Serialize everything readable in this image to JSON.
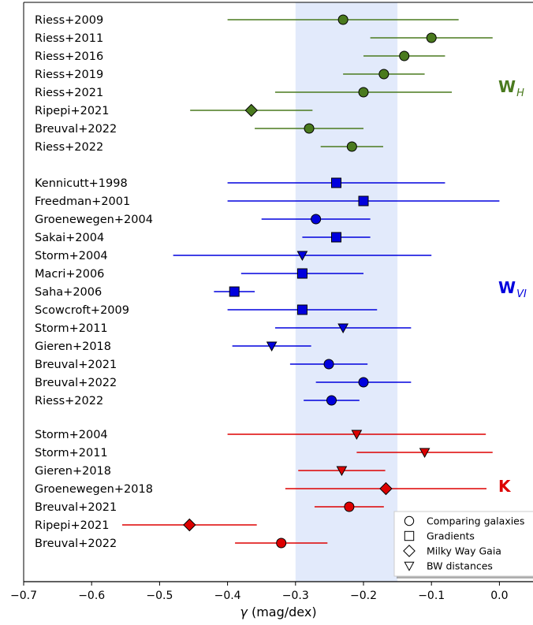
{
  "chart_data": {
    "type": "scatter",
    "xlabel_symbol": "γ",
    "xlabel_unit": "(mag/dex)",
    "xlim": [
      -0.7,
      0.05
    ],
    "xticks": [
      "−0.7",
      "−0.6",
      "−0.5",
      "−0.4",
      "−0.3",
      "−0.2",
      "−0.1",
      "0.0"
    ],
    "shaded_band": [
      -0.3,
      -0.15
    ],
    "groups": [
      {
        "label_main": "W",
        "label_sub": "H",
        "color": "#4a7a1e",
        "rows": [
          {
            "name": "Riess+2009",
            "gamma": -0.23,
            "lo": -0.4,
            "hi": -0.06,
            "marker": "circle"
          },
          {
            "name": "Riess+2011",
            "gamma": -0.1,
            "lo": -0.19,
            "hi": -0.01,
            "marker": "circle"
          },
          {
            "name": "Riess+2016",
            "gamma": -0.14,
            "lo": -0.2,
            "hi": -0.08,
            "marker": "circle"
          },
          {
            "name": "Riess+2019",
            "gamma": -0.17,
            "lo": -0.23,
            "hi": -0.11,
            "marker": "circle"
          },
          {
            "name": "Riess+2021",
            "gamma": -0.2,
            "lo": -0.33,
            "hi": -0.07,
            "marker": "circle"
          },
          {
            "name": "Ripepi+2021",
            "gamma": -0.365,
            "lo": -0.455,
            "hi": -0.275,
            "marker": "diamond"
          },
          {
            "name": "Breuval+2022",
            "gamma": -0.28,
            "lo": -0.36,
            "hi": -0.2,
            "marker": "circle"
          },
          {
            "name": "Riess+2022",
            "gamma": -0.217,
            "lo": -0.263,
            "hi": -0.171,
            "marker": "circle"
          }
        ]
      },
      {
        "label_main": "W",
        "label_sub": "VI",
        "color": "#0000dd",
        "rows": [
          {
            "name": "Kennicutt+1998",
            "gamma": -0.24,
            "lo": -0.4,
            "hi": -0.08,
            "marker": "square"
          },
          {
            "name": "Freedman+2001",
            "gamma": -0.2,
            "lo": -0.4,
            "hi": 0.0,
            "marker": "square"
          },
          {
            "name": "Groenewegen+2004",
            "gamma": -0.27,
            "lo": -0.35,
            "hi": -0.19,
            "marker": "circle"
          },
          {
            "name": "Sakai+2004",
            "gamma": -0.24,
            "lo": -0.29,
            "hi": -0.19,
            "marker": "square"
          },
          {
            "name": "Storm+2004",
            "gamma": -0.29,
            "lo": -0.48,
            "hi": -0.1,
            "marker": "triangle"
          },
          {
            "name": "Macri+2006",
            "gamma": -0.29,
            "lo": -0.38,
            "hi": -0.2,
            "marker": "square"
          },
          {
            "name": "Saha+2006",
            "gamma": -0.39,
            "lo": -0.42,
            "hi": -0.36,
            "marker": "square"
          },
          {
            "name": "Scowcroft+2009",
            "gamma": -0.29,
            "lo": -0.4,
            "hi": -0.18,
            "marker": "square"
          },
          {
            "name": "Storm+2011",
            "gamma": -0.23,
            "lo": -0.33,
            "hi": -0.13,
            "marker": "triangle"
          },
          {
            "name": "Gieren+2018",
            "gamma": -0.335,
            "lo": -0.393,
            "hi": -0.277,
            "marker": "triangle"
          },
          {
            "name": "Breuval+2021",
            "gamma": -0.251,
            "lo": -0.308,
            "hi": -0.194,
            "marker": "circle"
          },
          {
            "name": "Breuval+2022",
            "gamma": -0.2,
            "lo": -0.27,
            "hi": -0.13,
            "marker": "circle"
          },
          {
            "name": "Riess+2022",
            "gamma": -0.247,
            "lo": -0.288,
            "hi": -0.206,
            "marker": "circle"
          }
        ]
      },
      {
        "label_main": "K",
        "label_sub": "",
        "color": "#dd0000",
        "rows": [
          {
            "name": "Storm+2004",
            "gamma": -0.21,
            "lo": -0.4,
            "hi": -0.02,
            "marker": "triangle"
          },
          {
            "name": "Storm+2011",
            "gamma": -0.11,
            "lo": -0.21,
            "hi": -0.01,
            "marker": "triangle"
          },
          {
            "name": "Gieren+2018",
            "gamma": -0.232,
            "lo": -0.296,
            "hi": -0.168,
            "marker": "triangle"
          },
          {
            "name": "Groenewegen+2018",
            "gamma": -0.167,
            "lo": -0.315,
            "hi": -0.019,
            "marker": "diamond"
          },
          {
            "name": "Breuval+2021",
            "gamma": -0.221,
            "lo": -0.272,
            "hi": -0.17,
            "marker": "circle"
          },
          {
            "name": "Ripepi+2021",
            "gamma": -0.456,
            "lo": -0.555,
            "hi": -0.357,
            "marker": "diamond"
          },
          {
            "name": "Breuval+2022",
            "gamma": -0.321,
            "lo": -0.389,
            "hi": -0.253,
            "marker": "circle"
          }
        ]
      }
    ],
    "legend": {
      "placement": "bottom-right",
      "entries": [
        {
          "marker": "circle",
          "label": "Comparing galaxies"
        },
        {
          "marker": "square",
          "label": "Gradients"
        },
        {
          "marker": "diamond",
          "label": "Milky Way Gaia"
        },
        {
          "marker": "triangle",
          "label": "BW distances"
        }
      ]
    }
  }
}
